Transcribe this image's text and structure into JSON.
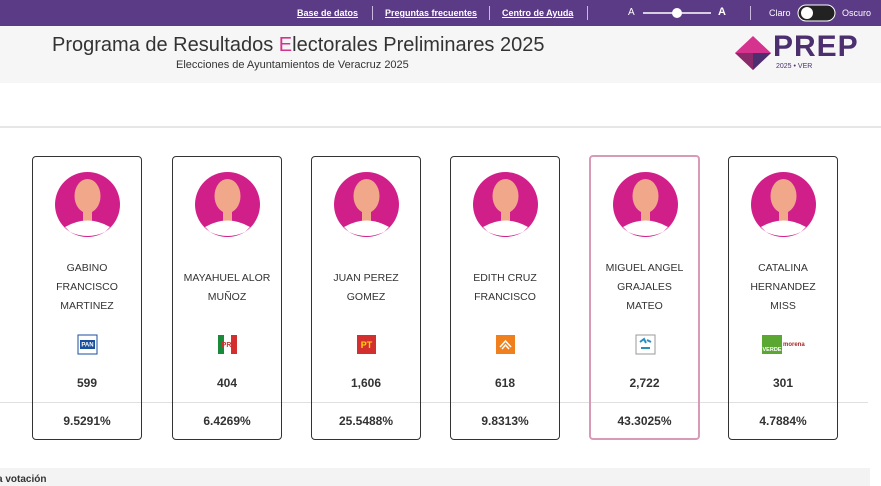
{
  "topbar": {
    "links": [
      "Base de datos",
      "Preguntas frecuentes",
      "Centro de Ayuda"
    ],
    "font_small": "A",
    "font_large": "A",
    "theme_light": "Claro",
    "theme_dark": "Oscuro"
  },
  "header": {
    "title_before": "Programa de Resultados ",
    "title_highlight": "E",
    "title_after": "lectorales Preliminares 2025",
    "subtitle": "Elecciones de Ayuntamientos de Veracruz 2025",
    "logo": "PREP",
    "logo_sub": "2025 • VER"
  },
  "candidates": [
    {
      "name": [
        "GABINO",
        "FRANCISCO",
        "MARTINEZ"
      ],
      "party": "PAN",
      "votes": "599",
      "percent": "9.5291%"
    },
    {
      "name": [
        "MAYAHUEL ALOR",
        "MUÑOZ"
      ],
      "party": "PRI",
      "votes": "404",
      "percent": "6.4269%"
    },
    {
      "name": [
        "JUAN PEREZ",
        "GOMEZ"
      ],
      "party": "PT",
      "votes": "1,606",
      "percent": "25.5488%"
    },
    {
      "name": [
        "EDITH CRUZ",
        "FRANCISCO"
      ],
      "party": "",
      "votes": "618",
      "percent": "9.8313%"
    },
    {
      "name": [
        "MIGUEL ANGEL",
        "GRAJALES",
        "MATEO"
      ],
      "party": "",
      "votes": "2,722",
      "percent": "43.3025%"
    },
    {
      "name": [
        "CATALINA",
        "HERNANDEZ",
        "MISS"
      ],
      "party": "VERDE morena",
      "votes": "301",
      "percent": "4.7884%"
    }
  ],
  "footer": {
    "section": "a votación"
  }
}
